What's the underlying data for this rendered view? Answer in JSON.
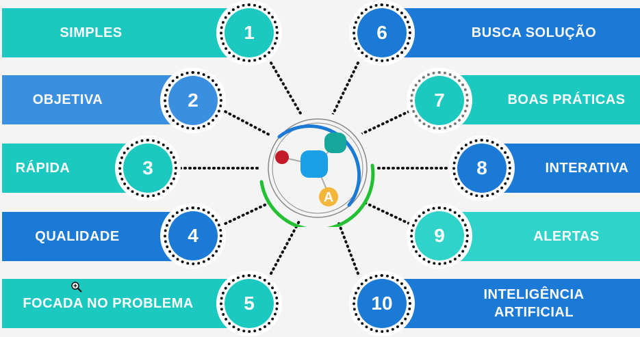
{
  "items": [
    {
      "number": "1",
      "label": "SIMPLES"
    },
    {
      "number": "2",
      "label": "OBJETIVA"
    },
    {
      "number": "3",
      "label": "RÁPIDA"
    },
    {
      "number": "4",
      "label": "QUALIDADE"
    },
    {
      "number": "5",
      "label": "FOCADA NO PROBLEMA"
    },
    {
      "number": "6",
      "label": "BUSCA SOLUÇÃO"
    },
    {
      "number": "7",
      "label": "BOAS PRÁTICAS"
    },
    {
      "number": "8",
      "label": "INTERATIVA"
    },
    {
      "number": "9",
      "label": "ALERTAS"
    },
    {
      "number": "10",
      "label": "INTELIGÊNCIA\nARTIFICIAL"
    }
  ],
  "hub": {
    "logo_letter": "A"
  },
  "colors": {
    "teal": "#1cc9c1",
    "blue": "#1a7ad6",
    "mid_blue": "#3a8fe0",
    "light_teal": "#2fd3c9",
    "accent_green": "#22c032",
    "accent_yellow": "#f2b73a",
    "accent_red": "#c41b2a",
    "accent_dark_teal": "#17a79a"
  },
  "icons": {
    "hub": "molecule-logo-icon",
    "cursor": "zoom-in-icon"
  }
}
